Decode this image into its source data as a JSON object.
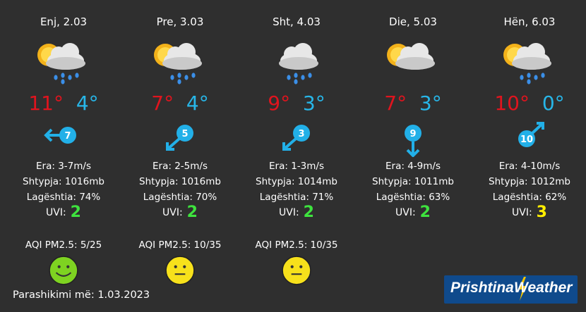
{
  "days": [
    {
      "date": "Enj, 2.03",
      "icon": "sun-cloud-rain-icon",
      "hi": "11°",
      "lo": "4°",
      "wind_num": "7",
      "wind_dir": "west",
      "era": "Era:  3-7m/s",
      "shtypja": "Shtypja: 1016mb",
      "lag": "Lagështia:  74%",
      "uvi_label": "UVI:",
      "uvi": "2",
      "uvi_color": "#3ee33e",
      "aqi": "AQI PM2.5: 5/25",
      "face": "smiley-face-icon",
      "face_color": "#7ed321"
    },
    {
      "date": "Pre, 3.03",
      "icon": "sun-cloud-rain-icon",
      "hi": "7°",
      "lo": "4°",
      "wind_num": "5",
      "wind_dir": "southwest",
      "era": "Era:  2-5m/s",
      "shtypja": "Shtypja: 1016mb",
      "lag": "Lagështia: 70%",
      "uvi_label": "UVI:",
      "uvi": "2",
      "uvi_color": "#3ee33e",
      "aqi": "AQI PM2.5: 10/35",
      "face": "neutral-face-icon",
      "face_color": "#f7e11b"
    },
    {
      "date": "Sht, 4.03",
      "icon": "cloud-rain-icon",
      "hi": "9°",
      "lo": "3°",
      "wind_num": "3",
      "wind_dir": "southwest",
      "era": "Era:  1-3m/s",
      "shtypja": "Shtypja: 1014mb",
      "lag": "Lagështia: 71%",
      "uvi_label": "UVI:",
      "uvi": "2",
      "uvi_color": "#3ee33e",
      "aqi": "AQI PM2.5: 10/35",
      "face": "neutral-face-icon",
      "face_color": "#f7e11b"
    },
    {
      "date": "Die, 5.03",
      "icon": "sun-cloud-icon",
      "hi": "7°",
      "lo": "3°",
      "wind_num": "9",
      "wind_dir": "south",
      "era": "Era: 4-9m/s",
      "shtypja": "Shtypja: 1011mb",
      "lag": "Lagështia: 63%",
      "uvi_label": "UVI:",
      "uvi": "2",
      "uvi_color": "#3ee33e",
      "aqi": "",
      "face": "",
      "face_color": ""
    },
    {
      "date": "Hën, 6.03",
      "icon": "sun-cloud-rain-icon",
      "hi": "10°",
      "lo": "0°",
      "wind_num": "10",
      "wind_dir": "northeast",
      "era": "Era: 4-10m/s",
      "shtypja": "Shtypja: 1012mb",
      "lag": "Lagështia: 62%",
      "uvi_label": "UVI:",
      "uvi": "3",
      "uvi_color": "#ffee00",
      "aqi": "",
      "face": "",
      "face_color": ""
    }
  ],
  "footer": "Parashikimi më: 1.03.2023",
  "logo": {
    "left": "Prishtina",
    "right": "Weather"
  },
  "colors": {
    "background": "#2f2f2f",
    "high_temp": "#e0141e",
    "low_temp": "#27b6e8",
    "wind": "#22b0e8",
    "logo_bg": "#0f4a8c",
    "logo_bolt": "#f5c400"
  }
}
